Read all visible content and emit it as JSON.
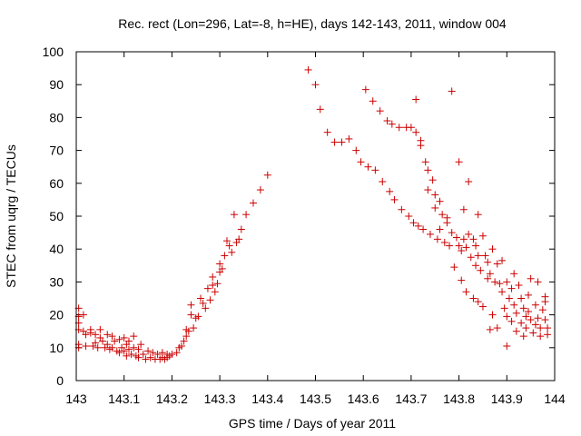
{
  "chart_data": {
    "type": "scatter",
    "title": "Rec. rect (Lon=296, Lat=-8, h=HE), days 142-143, 2011, window 004",
    "xlabel": "GPS time / Days of year 2011",
    "ylabel": "STEC from uqrg / TECUs",
    "xlim": [
      143,
      144
    ],
    "ylim": [
      0,
      100
    ],
    "x_ticks": [
      143,
      143.1,
      143.2,
      143.3,
      143.4,
      143.5,
      143.6,
      143.7,
      143.8,
      143.9,
      144
    ],
    "x_tick_labels": [
      "143",
      "143.1",
      "143.2",
      "143.3",
      "143.4",
      "143.5",
      "143.6",
      "143.7",
      "143.8",
      "143.9",
      "144"
    ],
    "y_ticks": [
      0,
      10,
      20,
      30,
      40,
      50,
      60,
      70,
      80,
      90,
      100
    ],
    "y_tick_labels": [
      "0",
      "10",
      "20",
      "30",
      "40",
      "50",
      "60",
      "70",
      "80",
      "90",
      "100"
    ],
    "marker": "+",
    "marker_color": "#cc0000",
    "grid": false,
    "series": [
      {
        "name": "STEC",
        "points": [
          [
            143.005,
            22
          ],
          [
            143.005,
            19.5
          ],
          [
            143.005,
            17.5
          ],
          [
            143.005,
            15.5
          ],
          [
            143.005,
            11
          ],
          [
            143.005,
            10
          ],
          [
            143.015,
            20
          ],
          [
            143.015,
            15
          ],
          [
            143.02,
            14
          ],
          [
            143.02,
            10.5
          ],
          [
            143.03,
            15.5
          ],
          [
            143.03,
            14.5
          ],
          [
            143.035,
            10.5
          ],
          [
            143.04,
            14
          ],
          [
            143.04,
            11.5
          ],
          [
            143.045,
            10
          ],
          [
            143.05,
            13
          ],
          [
            143.05,
            15.5
          ],
          [
            143.055,
            12
          ],
          [
            143.06,
            10
          ],
          [
            143.065,
            14
          ],
          [
            143.065,
            11
          ],
          [
            143.07,
            9.5
          ],
          [
            143.075,
            13.5
          ],
          [
            143.075,
            10
          ],
          [
            143.08,
            12
          ],
          [
            143.085,
            9
          ],
          [
            143.09,
            12.5
          ],
          [
            143.09,
            8.5
          ],
          [
            143.095,
            10
          ],
          [
            143.1,
            13
          ],
          [
            143.1,
            9
          ],
          [
            143.105,
            11
          ],
          [
            143.105,
            7.5
          ],
          [
            143.11,
            12
          ],
          [
            143.11,
            9.5
          ],
          [
            143.115,
            8
          ],
          [
            143.12,
            13.5
          ],
          [
            143.12,
            10
          ],
          [
            143.125,
            7.5
          ],
          [
            143.13,
            9.5
          ],
          [
            143.13,
            7
          ],
          [
            143.135,
            11
          ],
          [
            143.14,
            8
          ],
          [
            143.145,
            6.5
          ],
          [
            143.15,
            9
          ],
          [
            143.155,
            7
          ],
          [
            143.16,
            8.5
          ],
          [
            143.165,
            6.5
          ],
          [
            143.17,
            8
          ],
          [
            143.175,
            6.5
          ],
          [
            143.18,
            8.5
          ],
          [
            143.18,
            7
          ],
          [
            143.185,
            6.5
          ],
          [
            143.19,
            8
          ],
          [
            143.19,
            7
          ],
          [
            143.195,
            7.5
          ],
          [
            143.2,
            8
          ],
          [
            143.21,
            8.5
          ],
          [
            143.215,
            10
          ],
          [
            143.22,
            10.5
          ],
          [
            143.225,
            12
          ],
          [
            143.23,
            13.5
          ],
          [
            143.23,
            15.5
          ],
          [
            143.235,
            15
          ],
          [
            143.24,
            20
          ],
          [
            143.24,
            23
          ],
          [
            143.245,
            16
          ],
          [
            143.25,
            19
          ],
          [
            143.255,
            19.5
          ],
          [
            143.26,
            25
          ],
          [
            143.265,
            23.5
          ],
          [
            143.27,
            22
          ],
          [
            143.275,
            28
          ],
          [
            143.28,
            24.5
          ],
          [
            143.285,
            29
          ],
          [
            143.285,
            31.5
          ],
          [
            143.29,
            27
          ],
          [
            143.295,
            29.5
          ],
          [
            143.3,
            33
          ],
          [
            143.3,
            35.5
          ],
          [
            143.305,
            34
          ],
          [
            143.31,
            38
          ],
          [
            143.315,
            42.5
          ],
          [
            143.32,
            41
          ],
          [
            143.325,
            39
          ],
          [
            143.33,
            50.5
          ],
          [
            143.335,
            42
          ],
          [
            143.34,
            43
          ],
          [
            143.345,
            46
          ],
          [
            143.355,
            50.5
          ],
          [
            143.37,
            54
          ],
          [
            143.385,
            58
          ],
          [
            143.4,
            62.5
          ],
          [
            143.485,
            94.5
          ],
          [
            143.5,
            90
          ],
          [
            143.51,
            82.5
          ],
          [
            143.525,
            75.5
          ],
          [
            143.54,
            72.5
          ],
          [
            143.555,
            72.5
          ],
          [
            143.57,
            73.5
          ],
          [
            143.585,
            70
          ],
          [
            143.595,
            66.5
          ],
          [
            143.605,
            88.5
          ],
          [
            143.61,
            65
          ],
          [
            143.62,
            85
          ],
          [
            143.625,
            64
          ],
          [
            143.635,
            82
          ],
          [
            143.64,
            60.5
          ],
          [
            143.65,
            79
          ],
          [
            143.655,
            57.5
          ],
          [
            143.66,
            78
          ],
          [
            143.665,
            55
          ],
          [
            143.675,
            77
          ],
          [
            143.68,
            52
          ],
          [
            143.69,
            77
          ],
          [
            143.695,
            50
          ],
          [
            143.7,
            77
          ],
          [
            143.705,
            48
          ],
          [
            143.71,
            85.5
          ],
          [
            143.71,
            75.5
          ],
          [
            143.715,
            47
          ],
          [
            143.72,
            73
          ],
          [
            143.72,
            71.5
          ],
          [
            143.725,
            46
          ],
          [
            143.73,
            66.5
          ],
          [
            143.735,
            58
          ],
          [
            143.735,
            64
          ],
          [
            143.74,
            44.5
          ],
          [
            143.745,
            61
          ],
          [
            143.75,
            56.5
          ],
          [
            143.75,
            52.5
          ],
          [
            143.755,
            43
          ],
          [
            143.76,
            54.5
          ],
          [
            143.76,
            46
          ],
          [
            143.765,
            50.5
          ],
          [
            143.77,
            42
          ],
          [
            143.775,
            49.5
          ],
          [
            143.775,
            48
          ],
          [
            143.78,
            41
          ],
          [
            143.785,
            88
          ],
          [
            143.785,
            45
          ],
          [
            143.79,
            34.5
          ],
          [
            143.795,
            43.5
          ],
          [
            143.8,
            66.5
          ],
          [
            143.8,
            41
          ],
          [
            143.805,
            39.5
          ],
          [
            143.805,
            30.5
          ],
          [
            143.81,
            52
          ],
          [
            143.81,
            43
          ],
          [
            143.815,
            40.5
          ],
          [
            143.815,
            27
          ],
          [
            143.82,
            60.5
          ],
          [
            143.82,
            44.5
          ],
          [
            143.825,
            37.5
          ],
          [
            143.83,
            43
          ],
          [
            143.83,
            25
          ],
          [
            143.835,
            41
          ],
          [
            143.835,
            35
          ],
          [
            143.84,
            50.5
          ],
          [
            143.84,
            38
          ],
          [
            143.84,
            24
          ],
          [
            143.845,
            33.5
          ],
          [
            143.85,
            44
          ],
          [
            143.85,
            22.5
          ],
          [
            143.855,
            38
          ],
          [
            143.86,
            36
          ],
          [
            143.86,
            31
          ],
          [
            143.865,
            32.5
          ],
          [
            143.865,
            15.5
          ],
          [
            143.87,
            40
          ],
          [
            143.87,
            20
          ],
          [
            143.875,
            30
          ],
          [
            143.88,
            35.5
          ],
          [
            143.88,
            16
          ],
          [
            143.885,
            29.5
          ],
          [
            143.89,
            36.5
          ],
          [
            143.89,
            27
          ],
          [
            143.895,
            22
          ],
          [
            143.9,
            30
          ],
          [
            143.9,
            19.5
          ],
          [
            143.9,
            10.5
          ],
          [
            143.905,
            25
          ],
          [
            143.91,
            28
          ],
          [
            143.91,
            18
          ],
          [
            143.915,
            32.5
          ],
          [
            143.915,
            23
          ],
          [
            143.92,
            20.5
          ],
          [
            143.92,
            15
          ],
          [
            143.925,
            29
          ],
          [
            143.93,
            25
          ],
          [
            143.93,
            17.5
          ],
          [
            143.935,
            22
          ],
          [
            143.935,
            13.5
          ],
          [
            143.94,
            19.5
          ],
          [
            143.94,
            16
          ],
          [
            143.945,
            26
          ],
          [
            143.945,
            21
          ],
          [
            143.95,
            31
          ],
          [
            143.95,
            18.5
          ],
          [
            143.955,
            14.5
          ],
          [
            143.96,
            23
          ],
          [
            143.96,
            17
          ],
          [
            143.965,
            30
          ],
          [
            143.965,
            19
          ],
          [
            143.97,
            16
          ],
          [
            143.97,
            13.5
          ],
          [
            143.975,
            21.5
          ],
          [
            143.98,
            25.5
          ],
          [
            143.98,
            24
          ],
          [
            143.98,
            18.5
          ],
          [
            143.985,
            16
          ],
          [
            143.985,
            14
          ]
        ]
      }
    ]
  }
}
